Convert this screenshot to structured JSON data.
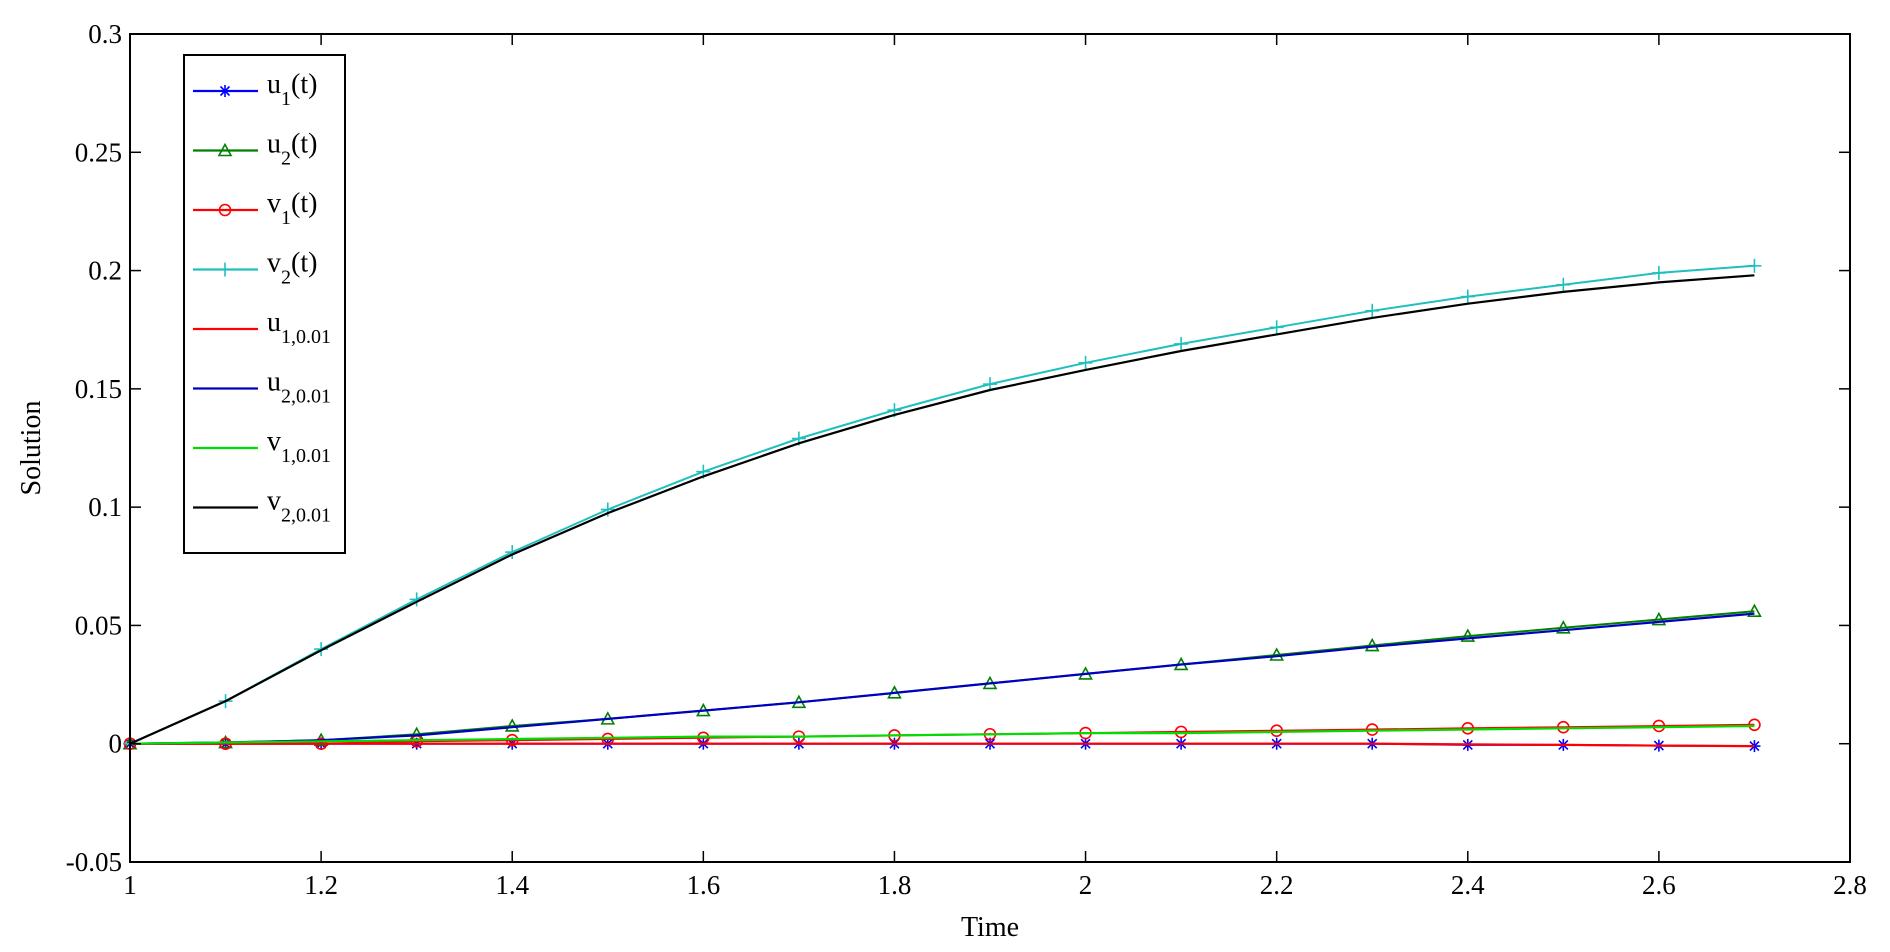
{
  "chart_data": {
    "type": "line",
    "title": "",
    "xlabel": "Time",
    "ylabel": "Solution",
    "xlim": [
      1,
      2.8
    ],
    "ylim": [
      -0.05,
      0.3
    ],
    "xticks": [
      1,
      1.2,
      1.4,
      1.6,
      1.8,
      2,
      2.2,
      2.4,
      2.6,
      2.8
    ],
    "xtick_labels": [
      "1",
      "1.2",
      "1.4",
      "1.6",
      "1.8",
      "2",
      "2.2",
      "2.4",
      "2.6",
      "2.8"
    ],
    "yticks": [
      -0.05,
      0,
      0.05,
      0.1,
      0.15,
      0.2,
      0.25,
      0.3
    ],
    "ytick_labels": [
      "-0.05",
      "0",
      "0.05",
      "0.1",
      "0.15",
      "0.2",
      "0.25",
      "0.3"
    ],
    "grid": false,
    "legend_position": "top-left",
    "x": [
      1,
      1.1,
      1.2,
      1.3,
      1.4,
      1.5,
      1.6,
      1.7,
      1.8,
      1.9,
      2,
      2.1,
      2.2,
      2.3,
      2.4,
      2.5,
      2.6,
      2.7
    ],
    "series": [
      {
        "name": "u",
        "sub": "1",
        "suffix": "(t)",
        "color": "#0000ff",
        "marker": "star",
        "values": [
          0,
          0,
          0,
          0,
          0,
          0,
          0,
          0,
          0,
          0,
          0,
          0,
          0,
          0,
          -0.0005,
          -0.0005,
          -0.0008,
          -0.001
        ]
      },
      {
        "name": "u",
        "sub": "2",
        "suffix": "(t)",
        "color": "#008000",
        "marker": "triangle",
        "values": [
          0,
          0.0005,
          0.0015,
          0.004,
          0.0075,
          0.0105,
          0.014,
          0.0175,
          0.0215,
          0.0255,
          0.0295,
          0.0335,
          0.0375,
          0.0415,
          0.0455,
          0.049,
          0.0525,
          0.056
        ]
      },
      {
        "name": "v",
        "sub": "1",
        "suffix": "(t)",
        "color": "#ff0000",
        "marker": "circle",
        "values": [
          0,
          0,
          0,
          0.001,
          0.0015,
          0.002,
          0.0025,
          0.003,
          0.0035,
          0.004,
          0.0045,
          0.005,
          0.0055,
          0.006,
          0.0065,
          0.007,
          0.0075,
          0.008
        ]
      },
      {
        "name": "v",
        "sub": "2",
        "suffix": "(t)",
        "color": "#1fbfbf",
        "marker": "plus",
        "values": [
          0,
          0.018,
          0.04,
          0.061,
          0.081,
          0.099,
          0.115,
          0.129,
          0.141,
          0.152,
          0.161,
          0.169,
          0.176,
          0.183,
          0.189,
          0.194,
          0.199,
          0.202
        ]
      },
      {
        "name": "u",
        "sub": "1,0.01",
        "suffix": "",
        "color": "#ff0000",
        "marker": "none",
        "values": [
          0,
          0,
          0,
          0,
          0,
          0,
          0,
          0,
          0,
          0,
          0,
          0,
          0,
          0,
          -0.0003,
          -0.0005,
          -0.0008,
          -0.001
        ]
      },
      {
        "name": "u",
        "sub": "2,0.01",
        "suffix": "",
        "color": "#0000c0",
        "marker": "none",
        "values": [
          0,
          0.0005,
          0.0015,
          0.0035,
          0.007,
          0.0105,
          0.014,
          0.0175,
          0.0215,
          0.0255,
          0.0295,
          0.0335,
          0.037,
          0.041,
          0.0445,
          0.048,
          0.0515,
          0.055
        ]
      },
      {
        "name": "v",
        "sub": "1,0.01",
        "suffix": "",
        "color": "#00dd00",
        "marker": "none",
        "values": [
          0,
          0.0005,
          0.001,
          0.0015,
          0.002,
          0.0025,
          0.003,
          0.003,
          0.0035,
          0.004,
          0.0045,
          0.0045,
          0.005,
          0.0055,
          0.006,
          0.0065,
          0.007,
          0.0075
        ]
      },
      {
        "name": "v",
        "sub": "2,0.01",
        "suffix": "",
        "color": "#000000",
        "marker": "none",
        "values": [
          0,
          0.018,
          0.0395,
          0.06,
          0.08,
          0.0975,
          0.113,
          0.127,
          0.139,
          0.1495,
          0.158,
          0.166,
          0.173,
          0.18,
          0.186,
          0.191,
          0.195,
          0.198
        ]
      }
    ]
  }
}
